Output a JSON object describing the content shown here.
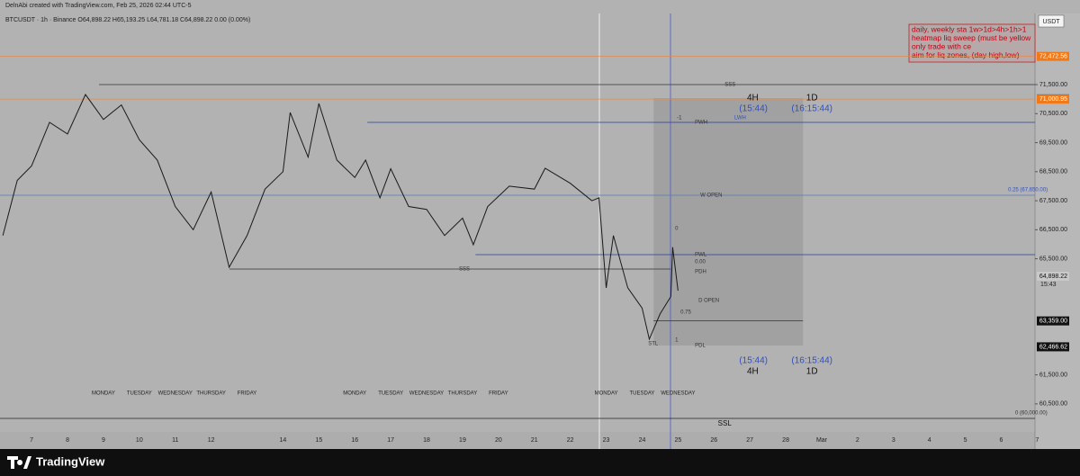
{
  "header": {
    "watermark": "DelnAbi created with TradingView.com, Feb 25, 2026 02:44 UTC-5",
    "symbol_line": "BTCUSDT · 1h · Binance  O64,898.22  H65,193.25  L64,781.18  C64,898.22  0.00 (0.00%)"
  },
  "currency": "USDT",
  "ylim": [
    59535,
    73950
  ],
  "xlim": [
    6.12,
    34.94
  ],
  "yticks": [
    {
      "value": 71500,
      "label": "71,500.00"
    },
    {
      "value": 70500,
      "label": "70,500.00"
    },
    {
      "value": 69500,
      "label": "69,500.00"
    },
    {
      "value": 68500,
      "label": "68,500.00"
    },
    {
      "value": 67500,
      "label": "67,500.00"
    },
    {
      "value": 66500,
      "label": "66,500.00"
    },
    {
      "value": 65500,
      "label": "65,500.00"
    },
    {
      "value": 61500,
      "label": "61,500.00"
    },
    {
      "value": 60500,
      "label": "60,500.00"
    }
  ],
  "price_labels": [
    {
      "value": 72472.56,
      "label": "72,472.56",
      "style": "orange"
    },
    {
      "value": 71009.6,
      "label": "71,009.60",
      "style": "dark"
    },
    {
      "value": 71000.95,
      "label": "71,000.95",
      "style": "orange"
    },
    {
      "value": 64898.22,
      "label": "64,898.22",
      "style": "light"
    },
    {
      "value": 63359.0,
      "label": "63,359.00",
      "style": "black"
    },
    {
      "value": 62466.62,
      "label": "62,466.62",
      "style": "black"
    }
  ],
  "countdown": "15:43",
  "date_ticks": [
    7,
    8,
    9,
    10,
    11,
    12,
    14,
    15,
    16,
    17,
    18,
    19,
    20,
    21,
    22,
    23,
    24,
    25,
    26,
    27,
    28,
    {
      "value": 29,
      "label": "Mar"
    },
    {
      "value": 30,
      "label": "2"
    },
    {
      "value": 31,
      "label": "3"
    },
    {
      "value": 32,
      "label": "4"
    },
    {
      "value": 33,
      "label": "5"
    },
    {
      "value": 34,
      "label": "6"
    },
    {
      "value": 35,
      "label": "7"
    }
  ],
  "weekday_labels": [
    {
      "value": 9,
      "label": "MONDAY"
    },
    {
      "value": 10,
      "label": "TUESDAY"
    },
    {
      "value": 11,
      "label": "WEDNESDAY"
    },
    {
      "value": 12,
      "label": "THURSDAY"
    },
    {
      "value": 13,
      "label": "FRIDAY"
    },
    {
      "value": 16,
      "label": "MONDAY"
    },
    {
      "value": 17,
      "label": "TUESDAY"
    },
    {
      "value": 18,
      "label": "WEDNESDAY"
    },
    {
      "value": 19,
      "label": "THURSDAY"
    },
    {
      "value": 20,
      "label": "FRIDAY"
    },
    {
      "value": 23,
      "label": "MONDAY"
    },
    {
      "value": 24,
      "label": "TUESDAY"
    },
    {
      "value": 25,
      "label": "WEDNESDAY"
    }
  ],
  "zone": {
    "from": 24.32,
    "to": 28.48,
    "low": 62513,
    "high": 71035,
    "color": "#9c9c9c"
  },
  "vlines": [
    {
      "at": 22.81,
      "color": "#ffffff"
    },
    {
      "at": 24.79,
      "color": "#4a5bd0"
    }
  ],
  "levels": [
    {
      "price": 72472.56,
      "from": 6.12,
      "to": 34.94,
      "color": "#e08a50"
    },
    {
      "price": 71000.95,
      "from": 6.12,
      "to": 34.94,
      "color": "#e08a50"
    },
    {
      "price": 71500,
      "from": 8.88,
      "to": 34.94,
      "color": "#333333"
    },
    {
      "price": 70198,
      "from": 16.35,
      "to": 34.94,
      "color": "#2a3f9a"
    },
    {
      "price": 67688,
      "from": 6.12,
      "to": 34.94,
      "color": "#5a7ab0"
    },
    {
      "price": 65643,
      "from": 19.36,
      "to": 34.94,
      "color": "#2a3f9a"
    },
    {
      "price": 65147,
      "from": 12.51,
      "to": 24.8,
      "color": "#333333"
    },
    {
      "price": 63359,
      "from": 24.32,
      "to": 28.48,
      "color": "#333333"
    },
    {
      "price": 60000,
      "from": 6.12,
      "to": 34.94,
      "color": "#222222"
    }
  ],
  "annotations": [
    {
      "text": "SSS",
      "x": 26.3,
      "y": 71500,
      "style": "small"
    },
    {
      "text": "SSS",
      "x": 18.9,
      "y": 65147,
      "style": "small"
    },
    {
      "text": "SSL",
      "x": 26.3,
      "y": 59817,
      "style": "mid"
    },
    {
      "text": "4H",
      "x": 27.08,
      "y": 71035,
      "style": "big"
    },
    {
      "text": "1D",
      "x": 28.73,
      "y": 71035,
      "style": "big"
    },
    {
      "text": "(15:44)",
      "x": 27.1,
      "y": 70663,
      "style": "time"
    },
    {
      "text": "(16:15:44)",
      "x": 28.73,
      "y": 70663,
      "style": "time"
    },
    {
      "text": "(15:44)",
      "x": 27.1,
      "y": 61986,
      "style": "time"
    },
    {
      "text": "(16:15:44)",
      "x": 28.73,
      "y": 61986,
      "style": "time"
    },
    {
      "text": "4H",
      "x": 27.08,
      "y": 61614,
      "style": "big"
    },
    {
      "text": "1D",
      "x": 28.73,
      "y": 61614,
      "style": "big"
    },
    {
      "text": "-1",
      "x": 24.97,
      "y": 70353,
      "style": "small"
    },
    {
      "text": "PWH",
      "x": 25.47,
      "y": 70198,
      "style": "small"
    },
    {
      "text": "LWH",
      "x": 26.57,
      "y": 70353,
      "style": "blue"
    },
    {
      "text": "W OPEN",
      "x": 25.62,
      "y": 67688,
      "style": "small"
    },
    {
      "text": "0.25 (67,650.00)",
      "x": 34.19,
      "y": 67874,
      "style": "blue"
    },
    {
      "text": "0",
      "x": 24.92,
      "y": 66542,
      "style": "small"
    },
    {
      "text": "PWL",
      "x": 25.47,
      "y": 65643,
      "style": "small"
    },
    {
      "text": "0.00",
      "x": 25.47,
      "y": 65395,
      "style": "small"
    },
    {
      "text": "PDH",
      "x": 25.47,
      "y": 65054,
      "style": "small"
    },
    {
      "text": "D OPEN",
      "x": 25.57,
      "y": 64062,
      "style": "small"
    },
    {
      "text": "0.75",
      "x": 25.07,
      "y": 63659,
      "style": "small"
    },
    {
      "text": "1",
      "x": 24.92,
      "y": 62699,
      "style": "small"
    },
    {
      "text": "STL",
      "x": 24.17,
      "y": 62575,
      "style": "small"
    },
    {
      "text": "PDL",
      "x": 25.47,
      "y": 62513,
      "style": "small"
    },
    {
      "text": "0 (60,000.00)",
      "x": 34.39,
      "y": 60188,
      "style": "small"
    }
  ],
  "price": {
    "color": "#1a1a1a",
    "x": [
      6.2,
      6.6,
      7.0,
      7.5,
      8.0,
      8.5,
      9.0,
      9.5,
      10.0,
      10.5,
      11.0,
      11.5,
      12.0,
      12.5,
      13.0,
      13.5,
      14.0,
      14.2,
      14.7,
      15.0,
      15.5,
      16.0,
      16.3,
      16.7,
      17.0,
      17.5,
      18.0,
      18.5,
      19.0,
      19.3,
      19.7,
      20.3,
      21.0,
      21.3,
      22.0,
      22.6,
      22.8,
      23.0,
      23.2,
      23.6,
      24.0,
      24.2,
      24.5,
      24.8,
      24.85,
      25.0
    ],
    "values": [
      66300,
      68200,
      68700,
      70200,
      69800,
      71159,
      70300,
      70800,
      69600,
      68900,
      67300,
      66500,
      67800,
      65209,
      66300,
      67900,
      68500,
      70539,
      69000,
      70849,
      68900,
      68300,
      68900,
      67600,
      68600,
      67300,
      67200,
      66300,
      66900,
      65984,
      67300,
      68000,
      67900,
      68618,
      68100,
      67500,
      67600,
      64496,
      66300,
      64500,
      63800,
      62730,
      63600,
      64200,
      65900,
      64400
    ]
  },
  "notes": [
    "daily, weekly sta 1w>1d>4h>1h>1",
    "heatmap liq sweep (must be yellow",
    "only trade with ce",
    "aim for liq zones, (day high,low)"
  ],
  "footer": {
    "brand": "TradingView"
  }
}
